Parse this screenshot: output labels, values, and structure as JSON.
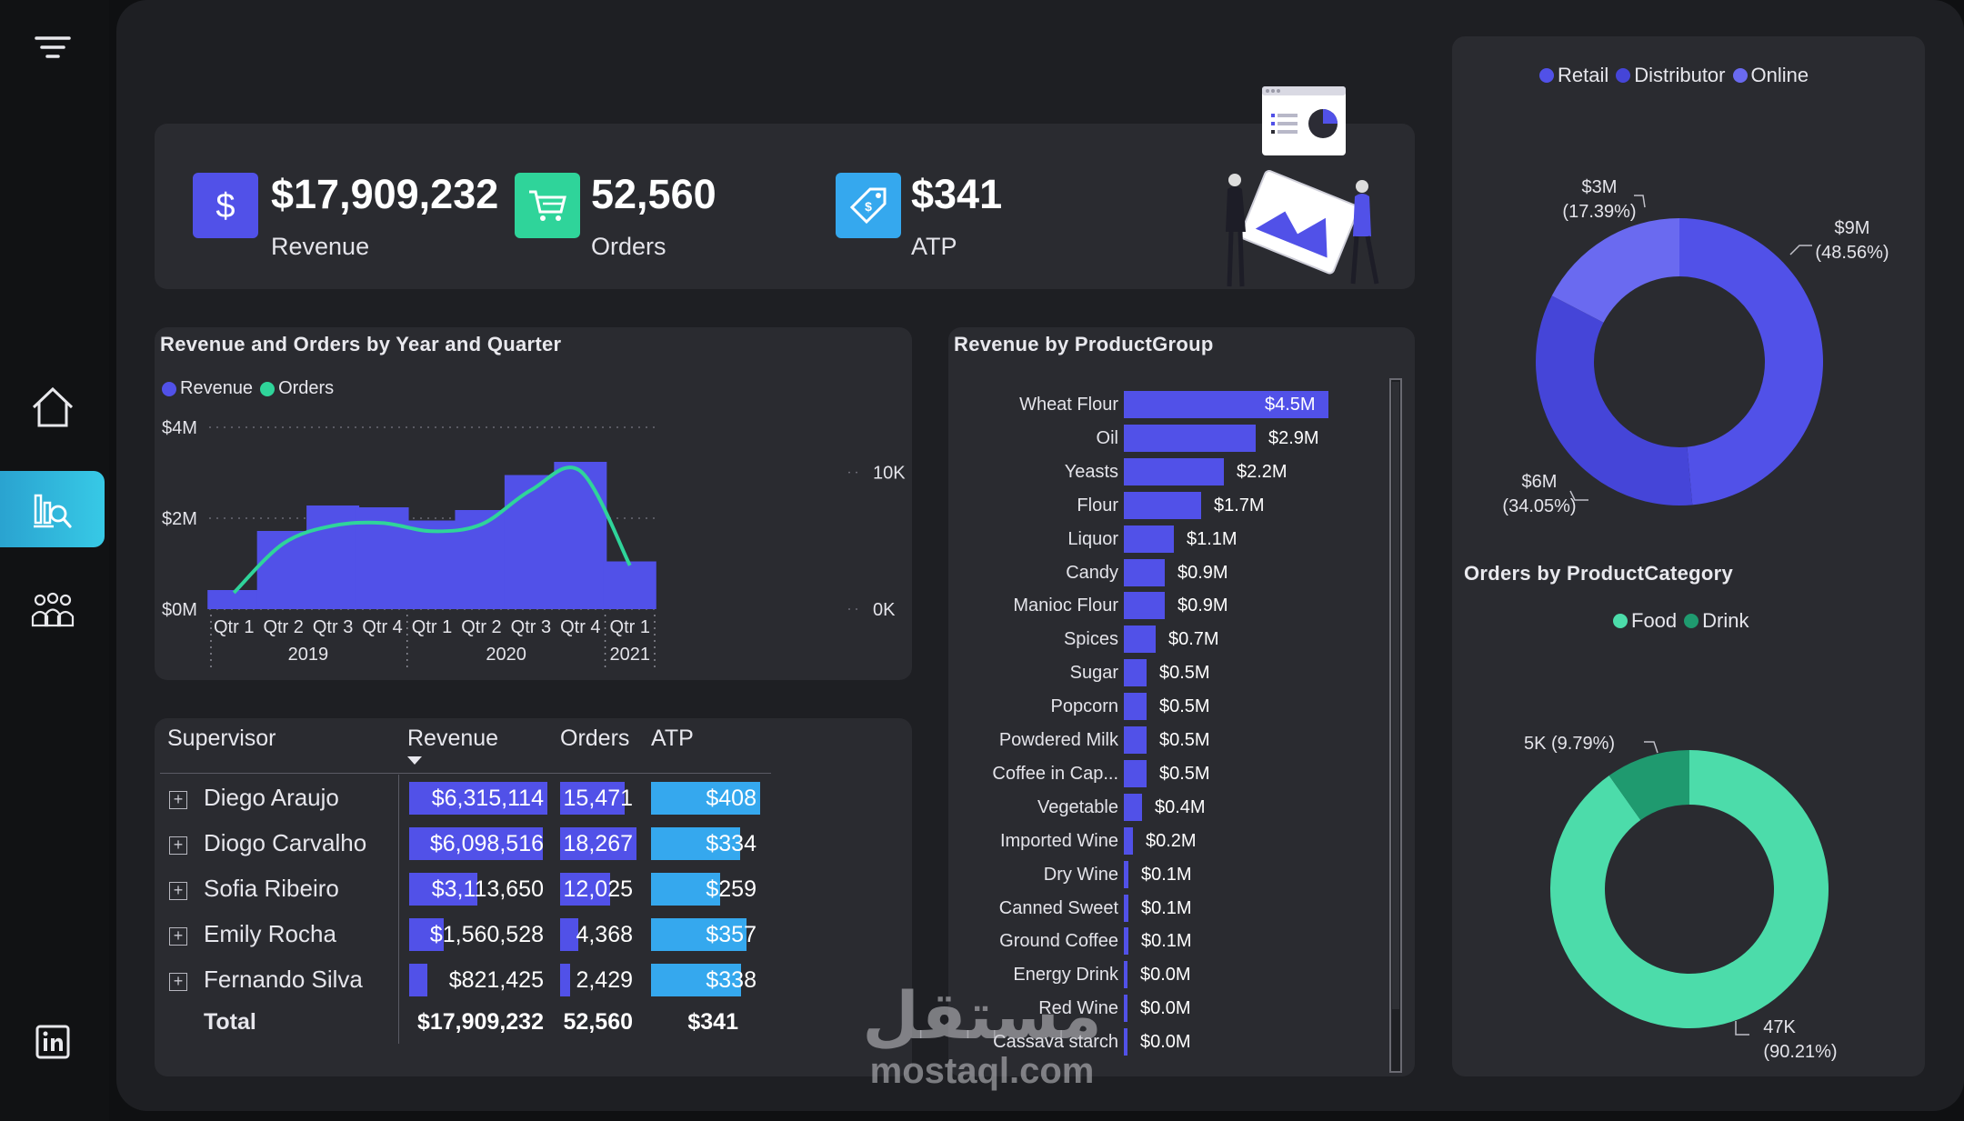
{
  "kpis": {
    "revenue": {
      "value": "$17,909,232",
      "label": "Revenue",
      "icon": "dollar-icon",
      "color": "#5151e8"
    },
    "orders": {
      "value": "52,560",
      "label": "Orders",
      "icon": "cart-icon",
      "color": "#2fd49a"
    },
    "atp": {
      "value": "$341",
      "label": "ATP",
      "icon": "price-tag-icon",
      "color": "#35a8ee"
    }
  },
  "revenue_orders_chart": {
    "title": "Revenue and Orders by Year and Quarter",
    "legend": [
      {
        "name": "Revenue",
        "color": "#5151e8"
      },
      {
        "name": "Orders",
        "color": "#2fd49a"
      }
    ]
  },
  "product_group_chart": {
    "title": "Revenue by ProductGroup"
  },
  "channel_chart": {
    "legend": [
      {
        "name": "Retail",
        "color": "#5151e8"
      },
      {
        "name": "Distributor",
        "color": "#4545d8"
      },
      {
        "name": "Online",
        "color": "#6a6af0"
      }
    ]
  },
  "category_chart": {
    "title": "Orders by ProductCategory",
    "legend": [
      {
        "name": "Food",
        "color": "#4cdcaa"
      },
      {
        "name": "Drink",
        "color": "#1f9a6f"
      }
    ]
  },
  "table": {
    "headers": {
      "supervisor": "Supervisor",
      "revenue": "Revenue",
      "orders": "Orders",
      "atp": "ATP"
    },
    "rows": [
      {
        "name": "Diego Araujo",
        "revenue": "$6,315,114",
        "orders": "15,471",
        "atp": "$408",
        "rev_share": 1.0,
        "ord_share": 0.847,
        "atp_share": 1.0
      },
      {
        "name": "Diogo Carvalho",
        "revenue": "$6,098,516",
        "orders": "18,267",
        "atp": "$334",
        "rev_share": 0.966,
        "ord_share": 1.0,
        "atp_share": 0.819
      },
      {
        "name": "Sofia Ribeiro",
        "revenue": "$3,113,650",
        "orders": "12,025",
        "atp": "$259",
        "rev_share": 0.493,
        "ord_share": 0.658,
        "atp_share": 0.635
      },
      {
        "name": "Emily Rocha",
        "revenue": "$1,560,528",
        "orders": "4,368",
        "atp": "$357",
        "rev_share": 0.247,
        "ord_share": 0.239,
        "atp_share": 0.875
      },
      {
        "name": "Fernando Silva",
        "revenue": "$821,425",
        "orders": "2,429",
        "atp": "$338",
        "rev_share": 0.13,
        "ord_share": 0.133,
        "atp_share": 0.828
      }
    ],
    "total": {
      "label": "Total",
      "revenue": "$17,909,232",
      "orders": "52,560",
      "atp": "$341"
    }
  },
  "watermark": {
    "arabic": "مستقل",
    "latin": "mostaql.com"
  },
  "chart_data": [
    {
      "type": "bar",
      "title": "Revenue and Orders by Year and Quarter",
      "categories": [
        "Qtr 1",
        "Qtr 2",
        "Qtr 3",
        "Qtr 4",
        "Qtr 1",
        "Qtr 2",
        "Qtr 3",
        "Qtr 4",
        "Qtr 1"
      ],
      "years": [
        {
          "label": "2019",
          "span": 4
        },
        {
          "label": "2020",
          "span": 4
        },
        {
          "label": "2021",
          "span": 1
        }
      ],
      "series": [
        {
          "name": "Revenue",
          "type": "bar",
          "axis": "left",
          "values": [
            0.42,
            1.72,
            2.28,
            2.24,
            1.95,
            2.18,
            2.95,
            3.24,
            1.05
          ]
        },
        {
          "name": "Orders",
          "type": "line",
          "axis": "right",
          "values": [
            1200,
            4800,
            6100,
            6300,
            5700,
            6200,
            8700,
            10100,
            3200
          ]
        }
      ],
      "y_left": {
        "ticks": [
          "$0M",
          "$2M",
          "$4M"
        ],
        "tick_values": [
          0,
          2,
          4
        ],
        "range": [
          0,
          4
        ]
      },
      "y_right": {
        "ticks": [
          "0K",
          "10K"
        ],
        "tick_values": [
          0,
          10000
        ],
        "range": [
          0,
          13300
        ]
      },
      "grid": true,
      "legend_position": "top-left"
    },
    {
      "type": "bar",
      "orientation": "horizontal",
      "title": "Revenue by ProductGroup",
      "categories": [
        "Wheat Flour",
        "Oil",
        "Yeasts",
        "Flour",
        "Liquor",
        "Candy",
        "Manioc Flour",
        "Spices",
        "Sugar",
        "Popcorn",
        "Powdered Milk",
        "Coffee in Cap...",
        "Vegetable",
        "Imported Wine",
        "Dry Wine",
        "Canned Sweet",
        "Ground Coffee",
        "Energy Drink",
        "Red Wine",
        "Cassava starch"
      ],
      "values": [
        4.5,
        2.9,
        2.2,
        1.7,
        1.1,
        0.9,
        0.9,
        0.7,
        0.5,
        0.5,
        0.5,
        0.5,
        0.4,
        0.2,
        0.1,
        0.1,
        0.1,
        0.04,
        0.03,
        0.02
      ],
      "labels": [
        "$4.5M",
        "$2.9M",
        "$2.2M",
        "$1.7M",
        "$1.1M",
        "$0.9M",
        "$0.9M",
        "$0.7M",
        "$0.5M",
        "$0.5M",
        "$0.5M",
        "$0.5M",
        "$0.4M",
        "$0.2M",
        "$0.1M",
        "$0.1M",
        "$0.1M",
        "$0.0M",
        "$0.0M",
        "$0.0M"
      ]
    },
    {
      "type": "pie",
      "style": "donut",
      "categories": [
        "Retail",
        "Distributor",
        "Online"
      ],
      "values": [
        48.56,
        34.05,
        17.39
      ],
      "labels": [
        "$9M\n(48.56%)",
        "$6M\n(34.05%)",
        "$3M\n(17.39%)"
      ],
      "colors": [
        "#5151e8",
        "#4545d8",
        "#6a6af0"
      ],
      "legend_position": "top"
    },
    {
      "type": "pie",
      "style": "donut",
      "title": "Orders by ProductCategory",
      "categories": [
        "Food",
        "Drink"
      ],
      "values": [
        90.21,
        9.79
      ],
      "labels": [
        "47K\n(90.21%)",
        "5K (9.79%)"
      ],
      "colors": [
        "#4cdcaa",
        "#1f9a6f"
      ],
      "legend_position": "top"
    }
  ]
}
